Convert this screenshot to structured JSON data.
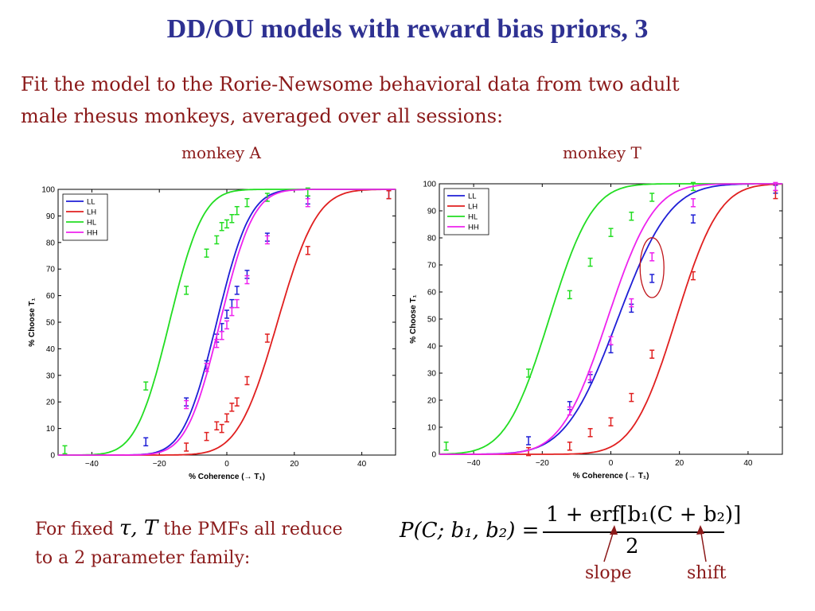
{
  "slide": {
    "title": "DD/OU models with reward bias priors, 3",
    "intro_line1": "Fit the model to the Rorie-Newsome behavioral data from two adult",
    "intro_line2": "male rhesus monkeys, averaged over all sessions:",
    "label_a": "monkey A",
    "label_t": "monkey T",
    "fixed_prefix": "For fixed",
    "fixed_symbols": "τ, T",
    "fixed_suffix": "the PMFs all reduce",
    "fixed_line2": "to a 2 parameter family:",
    "formula_lhs": "P(C; b₁, b₂) =",
    "formula_num": "1 + erf[b₁(C + b₂)]",
    "formula_den": "2",
    "slope_label": "slope",
    "shift_label": "shift"
  },
  "colors": {
    "LL": "#1f1fd6",
    "LH": "#e01f1f",
    "HL": "#22dd22",
    "HH": "#ee22ee",
    "title": "#2E3192",
    "text": "#8B1A1A",
    "highlight": "#c0141a"
  },
  "chart_data": [
    {
      "type": "line",
      "xlabel": "% Coherence (→ T₁)",
      "ylabel": "% Choose T₁",
      "xlim": [
        -50,
        50
      ],
      "ylim": [
        0,
        100
      ],
      "xticks": [
        -40,
        -20,
        0,
        20,
        40
      ],
      "yticks": [
        0,
        10,
        20,
        30,
        40,
        50,
        60,
        70,
        80,
        90,
        100
      ],
      "legend_position": "top-left",
      "legend": [
        "LL",
        "LH",
        "HL",
        "HH"
      ],
      "series": [
        {
          "name": "LL",
          "fit": {
            "mu": -3,
            "sigma": 11
          },
          "x": [
            -24,
            -12,
            -6,
            -3,
            -1.5,
            0,
            1.5,
            3,
            6,
            12,
            24,
            48
          ],
          "y": [
            5,
            20,
            34,
            44,
            48,
            53,
            57,
            62,
            68,
            82,
            96,
            98
          ]
        },
        {
          "name": "LH",
          "fit": {
            "mu": 15,
            "sigma": 13
          },
          "x": [
            -12,
            -6,
            -3,
            -1.5,
            0,
            1.5,
            3,
            6,
            12,
            24,
            48
          ],
          "y": [
            3,
            7,
            11,
            10,
            14,
            18,
            20,
            28,
            44,
            77,
            98
          ]
        },
        {
          "name": "HL",
          "fit": {
            "mu": -17,
            "sigma": 11
          },
          "x": [
            -48,
            -24,
            -12,
            -6,
            -3,
            -1.5,
            0,
            1.5,
            3,
            6,
            12,
            24
          ],
          "y": [
            2,
            26,
            62,
            76,
            81,
            86,
            87,
            89,
            92,
            95,
            97,
            99
          ]
        },
        {
          "name": "HH",
          "fit": {
            "mu": -2,
            "sigma": 11
          },
          "x": [
            -12,
            -6,
            -3,
            -1.5,
            0,
            1.5,
            3,
            6,
            12,
            24
          ],
          "y": [
            19,
            33,
            42,
            45,
            49,
            54,
            57,
            66,
            81,
            95
          ]
        }
      ]
    },
    {
      "type": "line",
      "xlabel": "% Coherence (→ T₁)",
      "ylabel": "% Choose T₁",
      "xlim": [
        -50,
        50
      ],
      "ylim": [
        0,
        100
      ],
      "xticks": [
        -40,
        -20,
        0,
        20,
        40
      ],
      "yticks": [
        0,
        10,
        20,
        30,
        40,
        50,
        60,
        70,
        80,
        90,
        100
      ],
      "legend_position": "top-left",
      "legend": [
        "LL",
        "LH",
        "HL",
        "HH"
      ],
      "series": [
        {
          "name": "LL",
          "fit": {
            "mu": 2,
            "sigma": 17
          },
          "x": [
            -24,
            -12,
            -6,
            0,
            6,
            12,
            24,
            48
          ],
          "y": [
            5,
            18,
            28,
            39,
            54,
            65,
            87,
            98
          ]
        },
        {
          "name": "LH",
          "fit": {
            "mu": 19,
            "sigma": 14
          },
          "x": [
            -24,
            -12,
            -6,
            0,
            6,
            12,
            24,
            48
          ],
          "y": [
            1,
            3,
            8,
            12,
            21,
            37,
            66,
            96
          ]
        },
        {
          "name": "HL",
          "fit": {
            "mu": -18,
            "sigma": 14
          },
          "x": [
            -48,
            -24,
            -12,
            -6,
            0,
            6,
            12,
            24
          ],
          "y": [
            3,
            30,
            59,
            71,
            82,
            88,
            95,
            99
          ]
        },
        {
          "name": "HH",
          "fit": {
            "mu": -1,
            "sigma": 15
          },
          "x": [
            -12,
            -6,
            0,
            6,
            12,
            24,
            48
          ],
          "y": [
            16,
            29,
            42,
            56,
            73,
            93,
            99
          ]
        }
      ]
    }
  ]
}
